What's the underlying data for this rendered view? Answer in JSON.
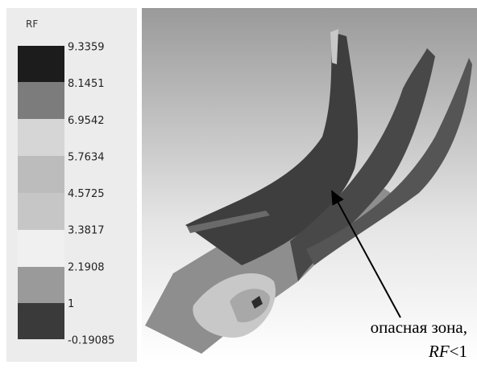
{
  "legend": {
    "title": "RF",
    "levels": [
      "9.3359",
      "8.1451",
      "6.9542",
      "5.7634",
      "4.5725",
      "3.3817",
      "2.1908",
      "1",
      "-0.19085"
    ]
  },
  "annotation": {
    "line1": "опасная зона,",
    "line2": {
      "italic": "RF",
      "rest": "<1"
    }
  }
}
